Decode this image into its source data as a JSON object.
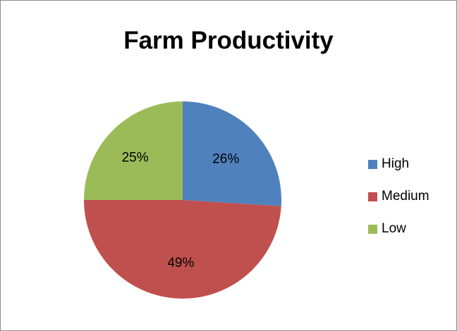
{
  "chart_data": {
    "type": "pie",
    "title": "Farm Productivity",
    "categories": [
      "High",
      "Medium",
      "Low"
    ],
    "values": [
      26,
      49,
      25
    ],
    "labels": [
      "26%",
      "49%",
      "25%"
    ],
    "colors": [
      "#4F81BD",
      "#C0504D",
      "#9BBB59"
    ],
    "legend_position": "right"
  }
}
